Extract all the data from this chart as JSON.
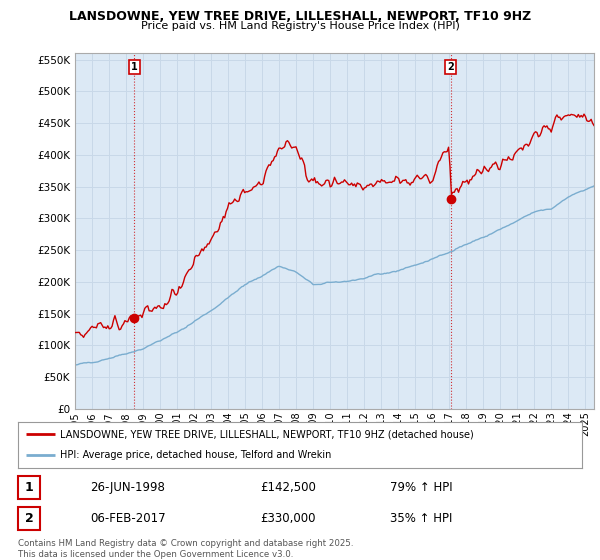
{
  "title": "LANSDOWNE, YEW TREE DRIVE, LILLESHALL, NEWPORT, TF10 9HZ",
  "subtitle": "Price paid vs. HM Land Registry's House Price Index (HPI)",
  "ylim": [
    0,
    560000
  ],
  "yticks": [
    0,
    50000,
    100000,
    150000,
    200000,
    250000,
    300000,
    350000,
    400000,
    450000,
    500000,
    550000
  ],
  "xlim_start": 1995.0,
  "xlim_end": 2025.5,
  "red_color": "#cc0000",
  "blue_color": "#7aadcf",
  "plot_bg_color": "#dce9f5",
  "legend_red_label": "LANSDOWNE, YEW TREE DRIVE, LILLESHALL, NEWPORT, TF10 9HZ (detached house)",
  "legend_blue_label": "HPI: Average price, detached house, Telford and Wrekin",
  "sale1_x": 1998.48,
  "sale1_y": 142500,
  "sale1_label": "1",
  "sale2_x": 2017.08,
  "sale2_y": 330000,
  "sale2_label": "2",
  "annotation1_date": "26-JUN-1998",
  "annotation1_price": "£142,500",
  "annotation1_hpi": "79% ↑ HPI",
  "annotation2_date": "06-FEB-2017",
  "annotation2_price": "£330,000",
  "annotation2_hpi": "35% ↑ HPI",
  "footer": "Contains HM Land Registry data © Crown copyright and database right 2025.\nThis data is licensed under the Open Government Licence v3.0.",
  "background_color": "#ffffff",
  "grid_color": "#c8d8e8"
}
